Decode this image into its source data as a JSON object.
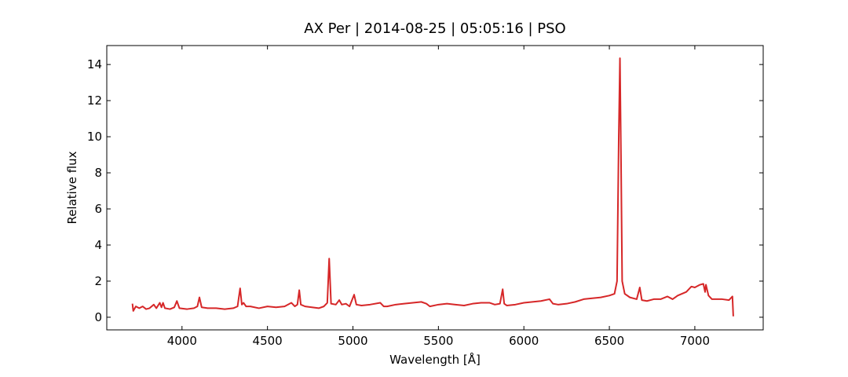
{
  "chart_data": {
    "type": "line",
    "title": "AX Per | 2014-08-25 | 05:05:16 | PSO",
    "x_label": "Wavelength [Å]",
    "y_label": "Relative flux",
    "xlim": [
      3560,
      7400
    ],
    "ylim": [
      -0.7,
      15.05
    ],
    "xticks": [
      4000,
      4500,
      5000,
      5500,
      6000,
      6500,
      7000
    ],
    "yticks": [
      0,
      2,
      4,
      6,
      8,
      10,
      12,
      14
    ],
    "grid": false,
    "x": [
      3710,
      3715,
      3730,
      3750,
      3770,
      3790,
      3810,
      3835,
      3850,
      3870,
      3880,
      3889,
      3900,
      3930,
      3955,
      3970,
      3985,
      4030,
      4070,
      4090,
      4102,
      4115,
      4150,
      4200,
      4250,
      4300,
      4325,
      4340,
      4350,
      4360,
      4375,
      4400,
      4450,
      4500,
      4550,
      4600,
      4640,
      4660,
      4675,
      4686,
      4695,
      4720,
      4760,
      4800,
      4830,
      4850,
      4861,
      4872,
      4900,
      4920,
      4935,
      4959,
      4980,
      5007,
      5020,
      5050,
      5100,
      5160,
      5180,
      5200,
      5250,
      5300,
      5350,
      5400,
      5430,
      5450,
      5500,
      5550,
      5600,
      5650,
      5700,
      5750,
      5800,
      5830,
      5860,
      5876,
      5885,
      5900,
      5950,
      6000,
      6050,
      6100,
      6150,
      6170,
      6200,
      6250,
      6300,
      6350,
      6400,
      6450,
      6500,
      6530,
      6545,
      6555,
      6562,
      6568,
      6575,
      6590,
      6620,
      6660,
      6678,
      6690,
      6720,
      6760,
      6800,
      6840,
      6870,
      6900,
      6950,
      6980,
      7000,
      7030,
      7050,
      7060,
      7065,
      7080,
      7100,
      7130,
      7160,
      7200,
      7220,
      7225
    ],
    "series": [
      {
        "color": "#d62728",
        "values": [
          0.75,
          0.35,
          0.6,
          0.5,
          0.6,
          0.45,
          0.5,
          0.7,
          0.5,
          0.8,
          0.55,
          0.8,
          0.5,
          0.45,
          0.55,
          0.9,
          0.5,
          0.45,
          0.5,
          0.6,
          1.1,
          0.55,
          0.5,
          0.5,
          0.45,
          0.5,
          0.6,
          1.6,
          0.7,
          0.8,
          0.6,
          0.6,
          0.5,
          0.6,
          0.55,
          0.6,
          0.8,
          0.6,
          0.7,
          1.5,
          0.7,
          0.6,
          0.55,
          0.5,
          0.6,
          0.8,
          3.25,
          0.75,
          0.7,
          0.95,
          0.7,
          0.75,
          0.6,
          1.25,
          0.7,
          0.65,
          0.7,
          0.8,
          0.6,
          0.6,
          0.7,
          0.75,
          0.8,
          0.85,
          0.75,
          0.6,
          0.7,
          0.75,
          0.7,
          0.65,
          0.75,
          0.8,
          0.8,
          0.7,
          0.75,
          1.55,
          0.75,
          0.65,
          0.7,
          0.8,
          0.85,
          0.9,
          1.0,
          0.75,
          0.7,
          0.75,
          0.85,
          1.0,
          1.05,
          1.1,
          1.2,
          1.3,
          2.0,
          10,
          14.35,
          9,
          2.0,
          1.3,
          1.1,
          1.0,
          1.65,
          0.95,
          0.9,
          1.0,
          1.0,
          1.15,
          1.0,
          1.2,
          1.4,
          1.7,
          1.65,
          1.8,
          1.85,
          1.4,
          1.8,
          1.2,
          1.0,
          1.0,
          1.0,
          0.95,
          1.15,
          0.05
        ]
      }
    ]
  }
}
